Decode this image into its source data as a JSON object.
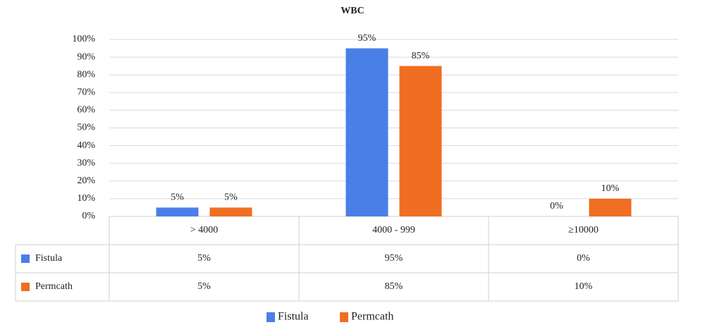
{
  "chart_data": {
    "type": "bar",
    "title": "WBC",
    "categories": [
      "> 4000",
      "4000 - 999",
      "≥10000"
    ],
    "series": [
      {
        "name": "Fistula",
        "color": "#4a7fe8",
        "values": [
          5,
          95,
          0
        ],
        "value_labels": [
          "5%",
          "95%",
          "0%"
        ]
      },
      {
        "name": "Permcath",
        "color": "#f06e22",
        "values": [
          5,
          85,
          10
        ],
        "value_labels": [
          "5%",
          "85%",
          "10%"
        ]
      }
    ],
    "ylim": [
      0,
      100
    ],
    "yticks": [
      {
        "value": 0,
        "label": "0%"
      },
      {
        "value": 10,
        "label": "10%"
      },
      {
        "value": 20,
        "label": "20%"
      },
      {
        "value": 30,
        "label": "30%"
      },
      {
        "value": 40,
        "label": "40%"
      },
      {
        "value": 50,
        "label": "50%"
      },
      {
        "value": 60,
        "label": "60%"
      },
      {
        "value": 70,
        "label": "70%"
      },
      {
        "value": 80,
        "label": "80%"
      },
      {
        "value": 90,
        "label": "90%"
      },
      {
        "value": 100,
        "label": "100%"
      }
    ],
    "grid": true,
    "legend": "bottom"
  }
}
